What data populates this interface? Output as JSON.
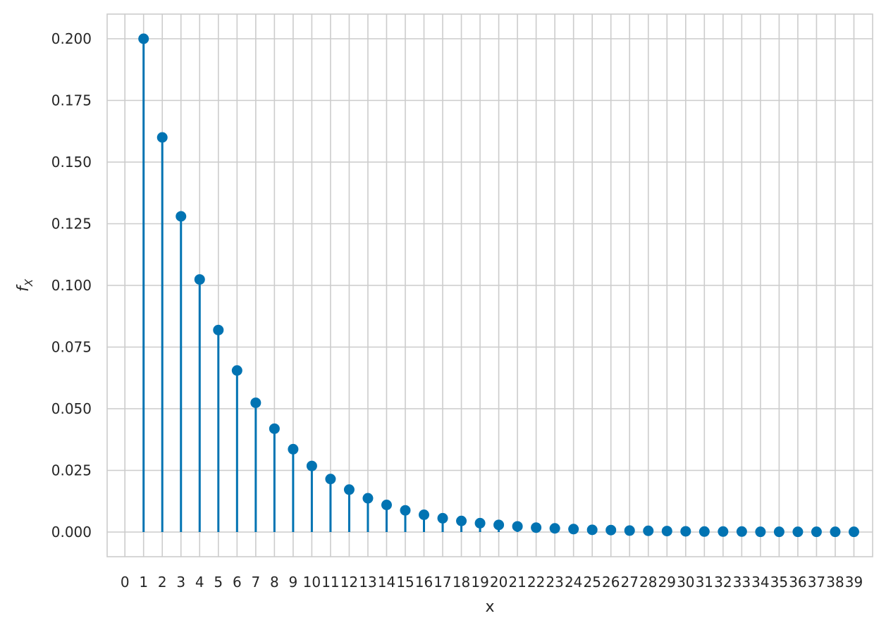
{
  "chart_data": {
    "type": "stem",
    "xlabel": "x",
    "ylabel": "f_X",
    "color": "#0173b2",
    "x_ticks": [
      0,
      1,
      2,
      3,
      4,
      5,
      6,
      7,
      8,
      9,
      10,
      11,
      12,
      13,
      14,
      15,
      16,
      17,
      18,
      19,
      20,
      21,
      22,
      23,
      24,
      25,
      26,
      27,
      28,
      29,
      30,
      31,
      32,
      33,
      34,
      35,
      36,
      37,
      38,
      39
    ],
    "xlim": [
      -0.95,
      40.0
    ],
    "y_ticks": [
      "0.000",
      "0.025",
      "0.050",
      "0.075",
      "0.100",
      "0.125",
      "0.150",
      "0.175",
      "0.200"
    ],
    "ylim": [
      -0.01,
      0.21
    ],
    "grid": true,
    "x": [
      1,
      2,
      3,
      4,
      5,
      6,
      7,
      8,
      9,
      10,
      11,
      12,
      13,
      14,
      15,
      16,
      17,
      18,
      19,
      20,
      21,
      22,
      23,
      24,
      25,
      26,
      27,
      28,
      29,
      30,
      31,
      32,
      33,
      34,
      35,
      36,
      37,
      38,
      39
    ],
    "y": [
      0.2,
      0.16,
      0.128,
      0.1024,
      0.0819,
      0.0655,
      0.0524,
      0.0419,
      0.0336,
      0.0268,
      0.0215,
      0.0172,
      0.0137,
      0.011,
      0.0088,
      0.007,
      0.0056,
      0.0045,
      0.0036,
      0.0029,
      0.0023,
      0.0018,
      0.0015,
      0.0012,
      0.0009,
      0.0008,
      0.0006,
      0.0005,
      0.0004,
      0.0003,
      0.0002,
      0.0002,
      0.0002,
      0.0001,
      0.0001,
      0.0001,
      0.0001,
      0.0001,
      0.0001
    ]
  }
}
